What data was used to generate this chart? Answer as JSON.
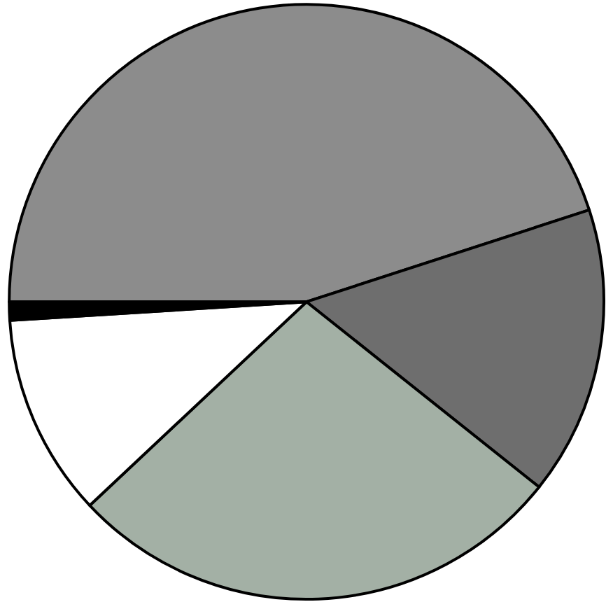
{
  "chart_data": {
    "type": "pie",
    "categories": [
      null,
      null,
      null,
      null,
      null
    ],
    "values": [
      45,
      15.7,
      27.3,
      11,
      1
    ],
    "colors": [
      "#8c8c8c",
      "#6e6e6e",
      "#a3b0a5",
      "#ffffff",
      "#000000"
    ]
  }
}
